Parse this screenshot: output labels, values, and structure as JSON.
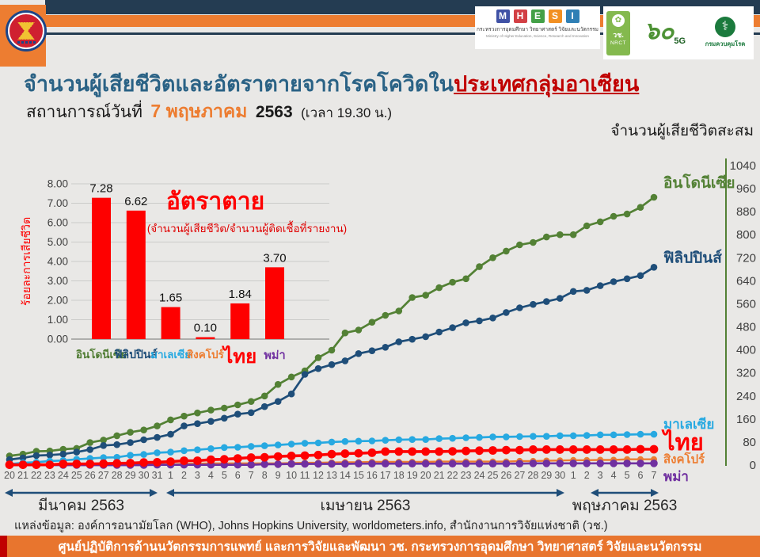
{
  "header": {
    "title_main": "จำนวนผู้เสียชีวิตและอัตราตายจากโรคโควิดใน",
    "title_highlight": "ประเทศกลุ่มอาเซียน",
    "subtitle_prefix": "สถานการณ์วันที่",
    "subtitle_date": "7 พฤษภาคม",
    "subtitle_year": "2563",
    "subtitle_time": "(เวลา 19.30 น.)",
    "right_axis_title": "จำนวนผู้เสียชีวิตสะสม"
  },
  "logos": {
    "mhesi": {
      "letters": [
        "M",
        "H",
        "E",
        "S",
        "I"
      ],
      "letter_colors": [
        "#3f51a5",
        "#d23f44",
        "#43a047",
        "#f29022",
        "#2f7fb5"
      ],
      "line1": "กระทรวงการอุดมศึกษา วิทยาศาสตร์ วิจัยและนวัตกรรม",
      "line2": "Ministry of Higher Education, Science, Research and Innovation"
    },
    "nrct": {
      "emblem": "nrct-seal-icon",
      "line1": "วช.",
      "line2": "NRCT"
    },
    "sixty": {
      "number": "๖๐",
      "sub": "5G"
    },
    "ddc": {
      "seal": "caduceus-icon",
      "seal_glyph": "⚕",
      "label": "กรมควบคุมโรค"
    },
    "asean": {
      "name": "asean-emblem"
    }
  },
  "chart_data": [
    {
      "type": "bar",
      "title": "อัตราตาย",
      "subtitle": "(จำนวนผู้เสียชีวิต/จำนวนผู้ติดเชื้อที่รายงาน)",
      "ylabel": "ร้อยละการเสียชีวิต",
      "categories": [
        "อินโดนีเซีย",
        "ฟิลิปปินส์",
        "มาเลเซีย",
        "สิงคโปร์",
        "ไทย",
        "พม่า"
      ],
      "category_colors": [
        "#4e7b31",
        "#1f4e79",
        "#27a9e1",
        "#ed7d31",
        "#ff0000",
        "#7030a0"
      ],
      "values": [
        7.28,
        6.62,
        1.65,
        0.1,
        1.84,
        3.7
      ],
      "value_labels": [
        "7.28",
        "6.62",
        "1.65",
        "0.10",
        "1.84",
        "3.70"
      ],
      "bar_color": "#fe0000",
      "ylim": [
        0,
        8
      ],
      "ytick_step": 1,
      "grid": true,
      "legend_position": "none"
    },
    {
      "type": "line",
      "ylim": [
        0,
        1040
      ],
      "ytick_step": 80,
      "yaxis_side": "right",
      "yaxis_color": "#538135",
      "grid": false,
      "x_tick_labels": [
        "20",
        "21",
        "22",
        "23",
        "24",
        "25",
        "26",
        "27",
        "28",
        "29",
        "30",
        "31",
        "1",
        "2",
        "3",
        "4",
        "5",
        "6",
        "7",
        "8",
        "9",
        "10",
        "11",
        "12",
        "13",
        "14",
        "15",
        "16",
        "17",
        "18",
        "19",
        "20",
        "21",
        "22",
        "23",
        "24",
        "25",
        "26",
        "27",
        "28",
        "29",
        "30",
        "1",
        "2",
        "3",
        "4",
        "5",
        "6",
        "7"
      ],
      "months": [
        {
          "label": "มีนาคม 2563",
          "from": 0,
          "to": 11
        },
        {
          "label": "เมษายน 2563",
          "from": 12,
          "to": 41
        },
        {
          "label": "พฤษภาคม 2563",
          "from": 42,
          "to": 48
        }
      ],
      "series": [
        {
          "name": "อินโดนีเซีย",
          "color": "#538135",
          "values": [
            32,
            38,
            48,
            49,
            55,
            58,
            78,
            87,
            102,
            114,
            122,
            136,
            157,
            170,
            181,
            191,
            198,
            209,
            221,
            240,
            280,
            306,
            327,
            373,
            399,
            459,
            469,
            496,
            520,
            535,
            582,
            590,
            616,
            635,
            647,
            689,
            720,
            743,
            765,
            773,
            792,
            800,
            800,
            831,
            845,
            864,
            872,
            895,
            930
          ]
        },
        {
          "name": "ฟิลิปปินส์",
          "color": "#1f4e79",
          "values": [
            19,
            25,
            33,
            35,
            38,
            45,
            54,
            68,
            71,
            78,
            88,
            96,
            107,
            136,
            144,
            152,
            163,
            177,
            182,
            203,
            221,
            247,
            315,
            335,
            349,
            362,
            387,
            397,
            409,
            428,
            437,
            446,
            462,
            477,
            494,
            501,
            511,
            530,
            546,
            558,
            568,
            579,
            603,
            607,
            623,
            637,
            647,
            658,
            687
          ]
        },
        {
          "name": "มาเลเซีย",
          "color": "#27a9e1",
          "values": [
            3,
            8,
            10,
            14,
            16,
            20,
            23,
            26,
            27,
            34,
            37,
            43,
            45,
            50,
            53,
            57,
            61,
            62,
            65,
            67,
            70,
            73,
            76,
            77,
            80,
            82,
            83,
            84,
            86,
            88,
            89,
            89,
            92,
            93,
            95,
            96,
            98,
            98,
            99,
            100,
            100,
            102,
            102,
            103,
            105,
            105,
            106,
            107,
            107
          ]
        },
        {
          "name": "สิงคโปร์",
          "color": "#ed7d31",
          "values": [
            0,
            2,
            2,
            2,
            2,
            2,
            2,
            2,
            2,
            3,
            3,
            3,
            3,
            4,
            5,
            6,
            6,
            6,
            6,
            6,
            6,
            7,
            8,
            8,
            9,
            10,
            10,
            11,
            11,
            11,
            11,
            11,
            12,
            12,
            12,
            12,
            12,
            12,
            14,
            14,
            15,
            16,
            17,
            17,
            18,
            18,
            20,
            20,
            20
          ]
        },
        {
          "name": "ไทย",
          "color": "#fe0000",
          "values": [
            1,
            1,
            1,
            1,
            4,
            4,
            4,
            5,
            6,
            7,
            9,
            10,
            12,
            15,
            15,
            19,
            20,
            23,
            26,
            27,
            30,
            32,
            33,
            35,
            38,
            40,
            41,
            43,
            47,
            47,
            47,
            47,
            47,
            48,
            49,
            50,
            51,
            52,
            52,
            54,
            54,
            54,
            54,
            54,
            54,
            54,
            54,
            55,
            55
          ]
        },
        {
          "name": "พม่า",
          "color": "#7030a0",
          "values": [
            0,
            0,
            0,
            0,
            0,
            0,
            0,
            0,
            0,
            0,
            0,
            1,
            1,
            1,
            1,
            1,
            1,
            1,
            1,
            3,
            3,
            4,
            4,
            4,
            4,
            4,
            5,
            5,
            5,
            5,
            5,
            5,
            5,
            5,
            5,
            5,
            5,
            5,
            5,
            6,
            6,
            6,
            6,
            6,
            6,
            6,
            6,
            6,
            6
          ]
        }
      ]
    }
  ],
  "source": "แหล่งข้อมูล: องค์การอนามัยโลก (WHO), Johns Hopkins University, worldometers.info, สำนักงานการวิจัยแห่งชาติ (วช.)",
  "footer": "ศูนย์ปฏิบัติการด้านนวัตกรรมการแพทย์ และการวิจัยและพัฒนา  วช.   กระทรวงการอุดมศึกษา วิทยาศาสตร์ วิจัยและนวัตกรรม"
}
